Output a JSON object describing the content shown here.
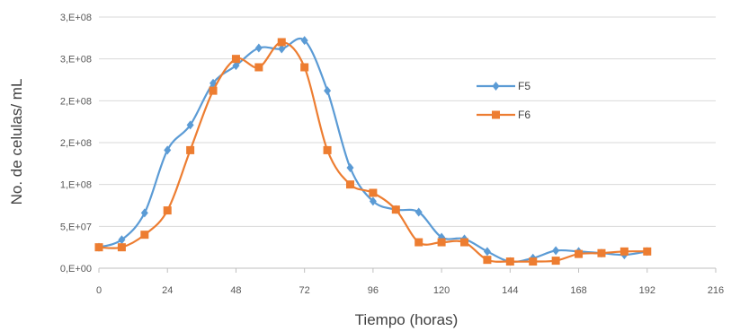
{
  "chart_data": {
    "type": "line",
    "xlabel": "Tiempo (horas)",
    "ylabel": "No. de celulas/ mL",
    "xlim": [
      0,
      216
    ],
    "ylim": [
      0,
      300000000
    ],
    "x_ticks": [
      0,
      24,
      48,
      72,
      96,
      120,
      144,
      168,
      192,
      216
    ],
    "x_tick_labels": [
      "0",
      "24",
      "48",
      "72",
      "96",
      "120",
      "144",
      "168",
      "192",
      "216"
    ],
    "y_ticks": [
      0,
      50000000,
      100000000,
      150000000,
      200000000,
      250000000,
      300000000
    ],
    "y_tick_labels": [
      "0,E+00",
      "5,E+07",
      "1,E+08",
      "2,E+08",
      "2,E+08",
      "3,E+08",
      "3,E+08"
    ],
    "grid": "horizontal",
    "legend_position": "right",
    "series": [
      {
        "name": "F5",
        "color": "#5b9bd5",
        "marker": "diamond",
        "points": [
          [
            0,
            25000000
          ],
          [
            8,
            34000000
          ],
          [
            16,
            66000000
          ],
          [
            24,
            141000000
          ],
          [
            32,
            171000000
          ],
          [
            40,
            221000000
          ],
          [
            48,
            242000000
          ],
          [
            56,
            263000000
          ],
          [
            64,
            262000000
          ],
          [
            72,
            272000000
          ],
          [
            80,
            212000000
          ],
          [
            88,
            120000000
          ],
          [
            96,
            80000000
          ],
          [
            104,
            70000000
          ],
          [
            112,
            67000000
          ],
          [
            120,
            37000000
          ],
          [
            128,
            35000000
          ],
          [
            136,
            20000000
          ],
          [
            144,
            8000000
          ],
          [
            152,
            12000000
          ],
          [
            160,
            21000000
          ],
          [
            168,
            20000000
          ],
          [
            176,
            18000000
          ],
          [
            184,
            16000000
          ],
          [
            192,
            20000000
          ]
        ]
      },
      {
        "name": "F6",
        "color": "#ed7d31",
        "marker": "square",
        "points": [
          [
            0,
            25000000
          ],
          [
            8,
            25000000
          ],
          [
            16,
            40000000
          ],
          [
            24,
            69000000
          ],
          [
            32,
            141000000
          ],
          [
            40,
            212000000
          ],
          [
            48,
            250000000
          ],
          [
            56,
            240000000
          ],
          [
            64,
            270000000
          ],
          [
            72,
            240000000
          ],
          [
            80,
            141000000
          ],
          [
            88,
            100000000
          ],
          [
            96,
            90000000
          ],
          [
            104,
            70000000
          ],
          [
            112,
            31000000
          ],
          [
            120,
            31000000
          ],
          [
            128,
            31000000
          ],
          [
            136,
            10000000
          ],
          [
            144,
            8000000
          ],
          [
            152,
            8000000
          ],
          [
            160,
            9000000
          ],
          [
            168,
            17000000
          ],
          [
            176,
            18000000
          ],
          [
            184,
            20000000
          ],
          [
            192,
            20000000
          ]
        ]
      }
    ]
  }
}
